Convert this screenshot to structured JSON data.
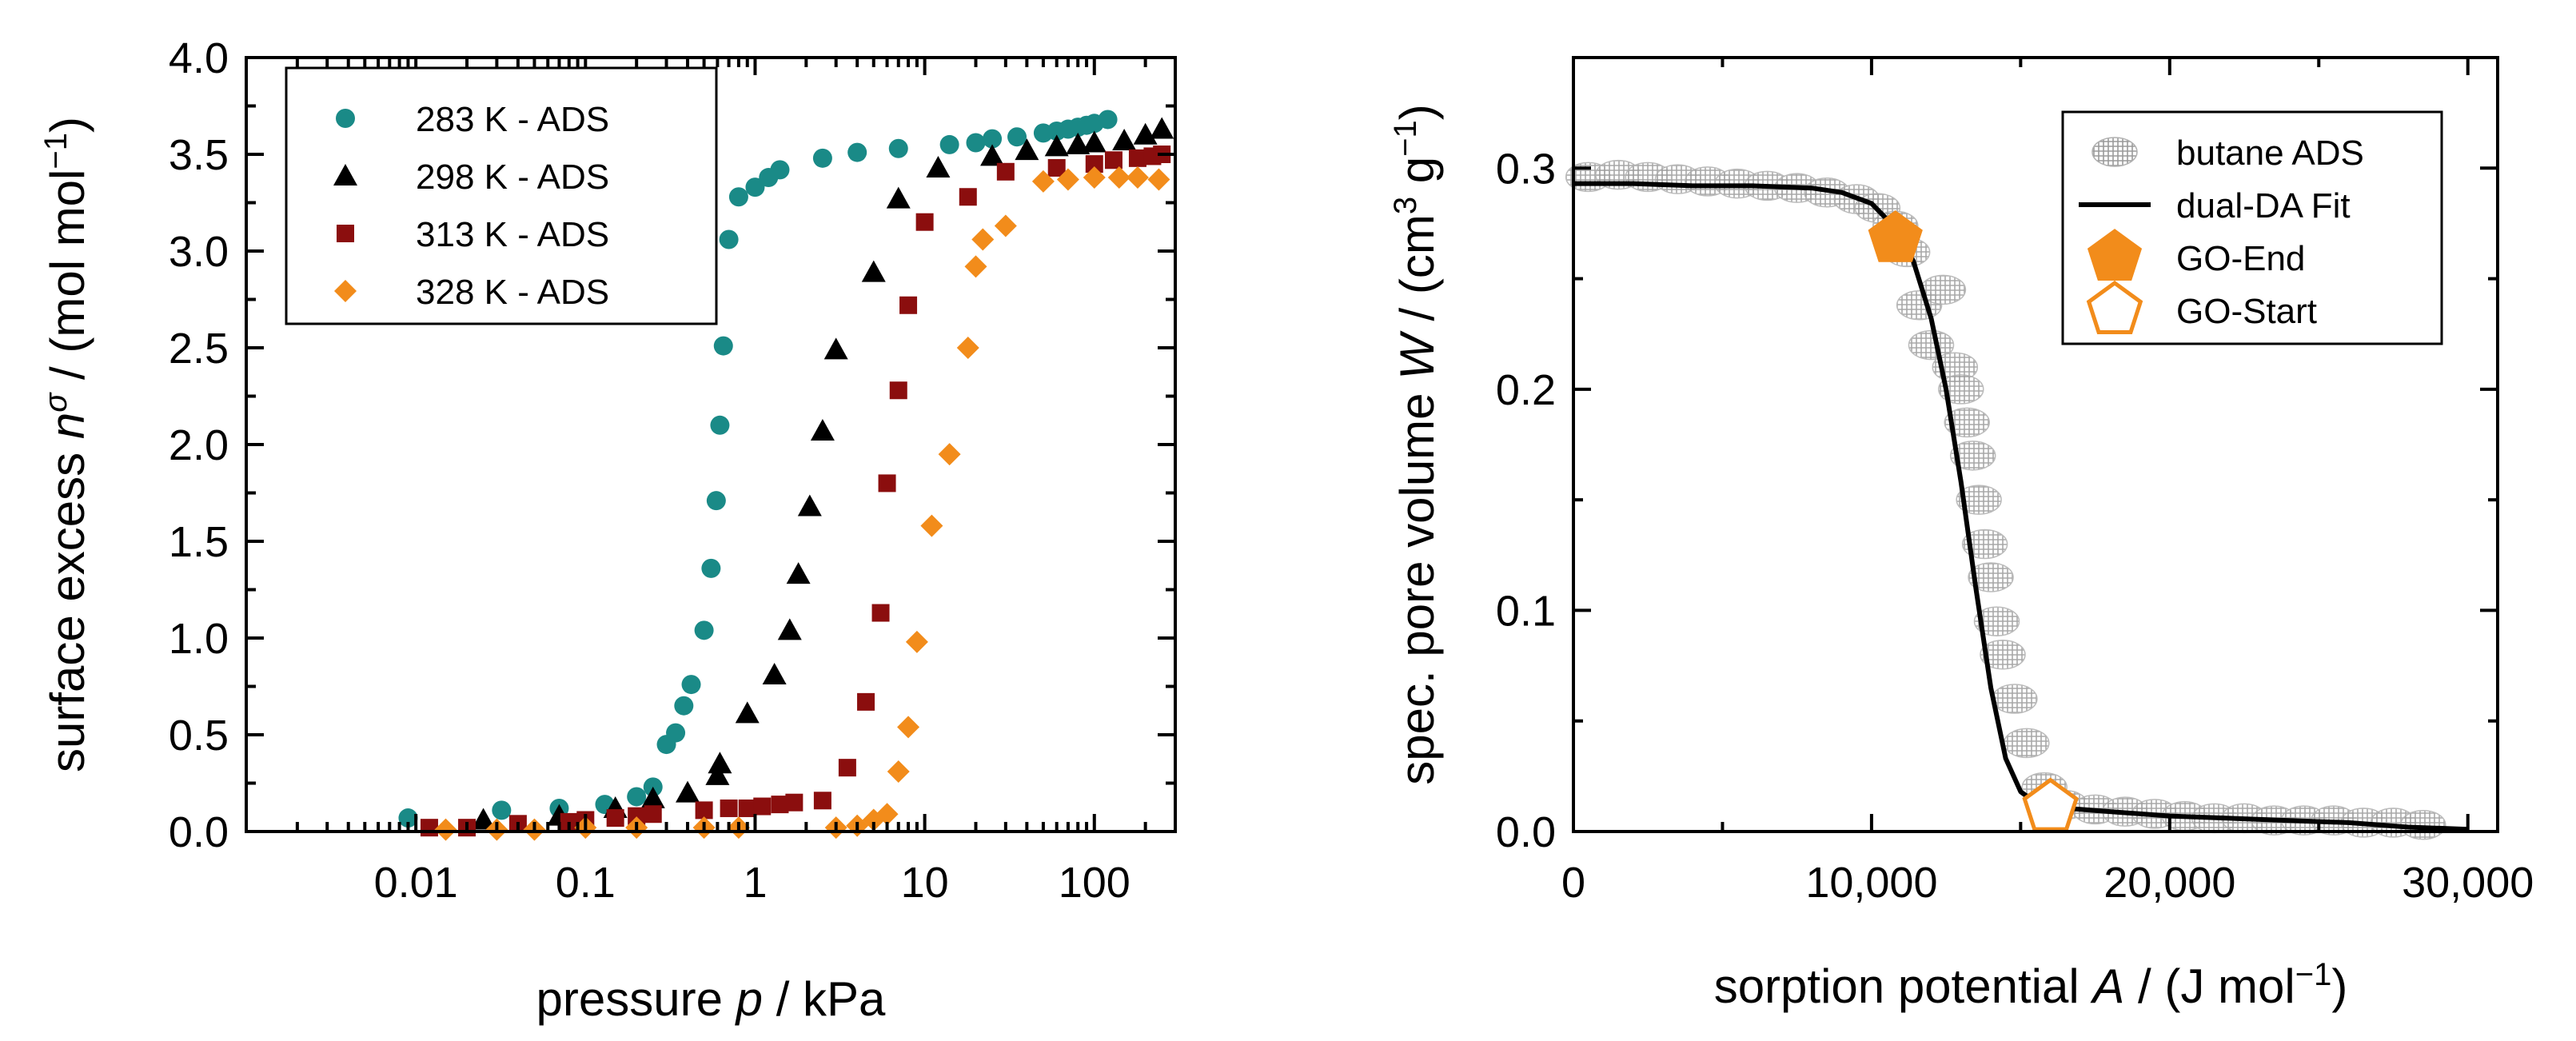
{
  "chart_data": [
    {
      "type": "scatter",
      "x_scale": "log",
      "xlim": [
        0.001,
        300
      ],
      "ylim": [
        0,
        4.0
      ],
      "xticks": [
        0.01,
        0.1,
        1,
        10,
        100
      ],
      "xtick_labels": [
        "0.01",
        "0.1",
        "1",
        "10",
        "100"
      ],
      "yticks": [
        0,
        0.5,
        1.0,
        1.5,
        2.0,
        2.5,
        3.0,
        3.5,
        4.0
      ],
      "ytick_labels": [
        "0.0",
        "0.5",
        "1.0",
        "1.5",
        "2.0",
        "2.5",
        "3.0",
        "3.5",
        "4.0"
      ],
      "xlabel": {
        "pre": "pressure ",
        "var": "p",
        "post": " / kPa"
      },
      "ylabel": {
        "pre": "surface excess ",
        "var": "n",
        "sup": "σ",
        "post": " / (mol mol",
        "sup2": "−1",
        "close": ")"
      },
      "legend_position": "top-left",
      "series": [
        {
          "name": "283 K - ADS",
          "color": "#1a8a87",
          "marker": "circle",
          "x": [
            0.009,
            0.032,
            0.07,
            0.13,
            0.2,
            0.25,
            0.3,
            0.34,
            0.38,
            0.42,
            0.5,
            0.55,
            0.59,
            0.62,
            0.65,
            0.7,
            0.8,
            1.0,
            1.2,
            1.4,
            2.5,
            4.0,
            7.0,
            14,
            20,
            25,
            35,
            50,
            60,
            70,
            80,
            90,
            100,
            120
          ],
          "y": [
            0.07,
            0.11,
            0.12,
            0.14,
            0.18,
            0.23,
            0.45,
            0.51,
            0.65,
            0.76,
            1.04,
            1.36,
            1.71,
            2.1,
            2.51,
            3.06,
            3.28,
            3.33,
            3.38,
            3.42,
            3.48,
            3.51,
            3.53,
            3.55,
            3.56,
            3.58,
            3.59,
            3.61,
            3.62,
            3.63,
            3.64,
            3.65,
            3.66,
            3.68
          ]
        },
        {
          "name": "298 K - ADS",
          "color": "#000000",
          "marker": "triangle",
          "x": [
            0.025,
            0.07,
            0.15,
            0.25,
            0.4,
            0.6,
            0.62,
            0.9,
            1.3,
            1.6,
            1.8,
            2.1,
            2.5,
            3.0,
            5.0,
            7.0,
            12,
            25,
            40,
            60,
            80,
            100,
            150,
            200,
            250
          ],
          "y": [
            0.06,
            0.08,
            0.12,
            0.17,
            0.2,
            0.29,
            0.35,
            0.61,
            0.81,
            1.04,
            1.33,
            1.68,
            2.07,
            2.49,
            2.89,
            3.27,
            3.43,
            3.49,
            3.52,
            3.54,
            3.55,
            3.56,
            3.57,
            3.6,
            3.63
          ]
        },
        {
          "name": "313 K - ADS",
          "color": "#8b0e0e",
          "marker": "square",
          "x": [
            0.012,
            0.02,
            0.04,
            0.08,
            0.1,
            0.15,
            0.2,
            0.25,
            0.5,
            0.7,
            0.9,
            1.1,
            1.4,
            1.7,
            2.5,
            3.5,
            4.5,
            5.5,
            6.0,
            7.0,
            8.0,
            10,
            18,
            30,
            60,
            100,
            130,
            180,
            220,
            250
          ],
          "y": [
            0.02,
            0.02,
            0.04,
            0.05,
            0.06,
            0.07,
            0.08,
            0.09,
            0.11,
            0.12,
            0.12,
            0.13,
            0.14,
            0.15,
            0.16,
            0.33,
            0.67,
            1.13,
            1.8,
            2.28,
            2.72,
            3.15,
            3.28,
            3.41,
            3.43,
            3.45,
            3.47,
            3.48,
            3.49,
            3.5
          ]
        },
        {
          "name": "328 K - ADS",
          "color": "#f28c1b",
          "marker": "diamond",
          "x": [
            0.015,
            0.03,
            0.05,
            0.1,
            0.2,
            0.5,
            0.8,
            3.0,
            4.0,
            5.0,
            6.0,
            7.0,
            8.0,
            9.0,
            11,
            14,
            18,
            20,
            22,
            30,
            50,
            70,
            100,
            140,
            180,
            240
          ],
          "y": [
            0.01,
            0.01,
            0.01,
            0.02,
            0.02,
            0.02,
            0.02,
            0.02,
            0.03,
            0.06,
            0.09,
            0.31,
            0.54,
            0.98,
            1.58,
            1.95,
            2.5,
            2.92,
            3.06,
            3.13,
            3.36,
            3.37,
            3.38,
            3.38,
            3.38,
            3.37
          ]
        }
      ]
    },
    {
      "type": "scatter",
      "xlim": [
        0,
        31000
      ],
      "ylim": [
        0,
        0.35
      ],
      "xticks": [
        0,
        10000,
        20000,
        30000
      ],
      "xtick_labels": [
        "0",
        "10,000",
        "20,000",
        "30,000"
      ],
      "yticks": [
        0.0,
        0.1,
        0.2,
        0.3
      ],
      "ytick_labels": [
        "0.0",
        "0.1",
        "0.2",
        "0.3"
      ],
      "xlabel": {
        "pre": "sorption potential ",
        "var": "A",
        "post": " / (J mol",
        "sup": "−1",
        "close": ")"
      },
      "ylabel": {
        "pre": "spec. pore volume ",
        "var": "W",
        "post": " / (cm",
        "sup": "3",
        "mid": " g",
        "sup2": "−1",
        "close": ")"
      },
      "legend_position": "top-right",
      "series": [
        {
          "name": "butane ADS",
          "color": "#808080",
          "marker": "hatched-ellipse",
          "x": [
            500,
            1500,
            2500,
            3500,
            4500,
            5500,
            6500,
            7500,
            8500,
            9500,
            10200,
            10800,
            11200,
            11600,
            12000,
            12400,
            12800,
            13000,
            13200,
            13400,
            13600,
            13800,
            14000,
            14200,
            14400,
            14800,
            15200,
            15800,
            16500,
            17500,
            18500,
            19500,
            20500,
            21500,
            22500,
            23500,
            24500,
            25500,
            26500,
            27500,
            28500
          ],
          "y": [
            0.296,
            0.297,
            0.296,
            0.295,
            0.294,
            0.293,
            0.292,
            0.291,
            0.289,
            0.286,
            0.282,
            0.274,
            0.262,
            0.238,
            0.22,
            0.245,
            0.21,
            0.2,
            0.185,
            0.17,
            0.15,
            0.13,
            0.115,
            0.095,
            0.08,
            0.06,
            0.04,
            0.02,
            0.012,
            0.01,
            0.009,
            0.008,
            0.007,
            0.006,
            0.006,
            0.005,
            0.005,
            0.005,
            0.004,
            0.004,
            0.003
          ]
        },
        {
          "name": "dual-DA Fit",
          "color": "#000000",
          "marker": "line",
          "x": [
            0,
            2000,
            4000,
            6000,
            8000,
            9000,
            10000,
            10800,
            11400,
            12000,
            12500,
            13000,
            13500,
            14000,
            14500,
            15000,
            15500,
            16000,
            17000,
            18000,
            20000,
            22000,
            24000,
            26000,
            28000,
            30000
          ],
          "y": [
            0.293,
            0.293,
            0.292,
            0.292,
            0.291,
            0.289,
            0.284,
            0.273,
            0.258,
            0.232,
            0.2,
            0.158,
            0.11,
            0.065,
            0.033,
            0.018,
            0.013,
            0.011,
            0.01,
            0.009,
            0.007,
            0.006,
            0.005,
            0.004,
            0.002,
            0.001
          ]
        },
        {
          "name": "GO-End",
          "color": "#f28c1b",
          "marker": "filled-pentagon",
          "x": [
            10800
          ],
          "y": [
            0.268
          ]
        },
        {
          "name": "GO-Start",
          "color": "#f28c1b",
          "marker": "open-pentagon",
          "x": [
            16000
          ],
          "y": [
            0.011
          ]
        }
      ]
    }
  ]
}
